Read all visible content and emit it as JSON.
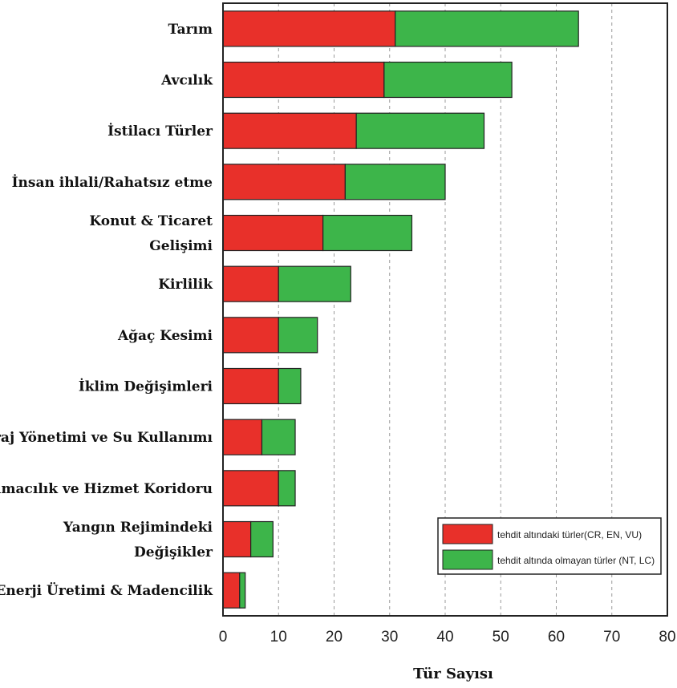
{
  "chart_data": {
    "type": "bar",
    "orientation": "horizontal",
    "stacked": true,
    "categories": [
      "Tarım",
      "Avcılık",
      "İstilacı Türler",
      "İnsan ihlali/Rahatsız etme",
      "Konut & Ticaret Gelişimi",
      "Kirlilik",
      "Ağaç Kesimi",
      "İklim Değişimleri",
      "Baraj Yönetimi ve Su Kullanımı",
      "Taşımacılık ve Hizmet Koridoru",
      "Yangın Rejimindeki Değişikler",
      "Enerji Üretimi & Madencilik"
    ],
    "category_lines": [
      [
        "Tarım"
      ],
      [
        "Avcılık"
      ],
      [
        "İstilacı Türler"
      ],
      [
        "İnsan ihlali/Rahatsız etme"
      ],
      [
        "Konut & Ticaret",
        "Gelişimi"
      ],
      [
        "Kirlilik"
      ],
      [
        "Ağaç Kesimi"
      ],
      [
        "İklim Değişimleri"
      ],
      [
        "Baraj Yönetimi ve Su Kullanımı"
      ],
      [
        "Taşımacılık ve Hizmet Koridoru"
      ],
      [
        "Yangın Rejimindeki",
        "Değişikler"
      ],
      [
        "Enerji Üretimi & Madencilik"
      ]
    ],
    "series": [
      {
        "name": "tehdit altındaki türler(CR, EN, VU)",
        "color": "#e8302a",
        "values": [
          31,
          29,
          24,
          22,
          18,
          10,
          10,
          10,
          7,
          10,
          5,
          3
        ]
      },
      {
        "name": "tehdit altında olmayan türler (NT, LC)",
        "color": "#3db54a",
        "values": [
          33,
          23,
          23,
          18,
          16,
          13,
          7,
          4,
          6,
          3,
          4,
          1
        ]
      }
    ],
    "xlabel": "Tür Sayısı",
    "ylabel": "",
    "title": "",
    "xlim": [
      0,
      80
    ],
    "xticks": [
      0,
      10,
      20,
      30,
      40,
      50,
      60,
      70,
      80
    ],
    "grid": "vertical dashed",
    "legend_position": "bottom-right"
  }
}
